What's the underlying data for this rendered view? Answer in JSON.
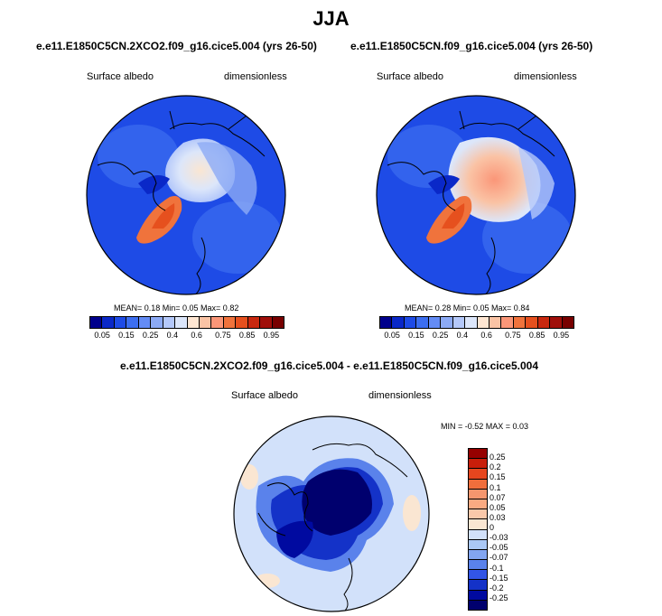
{
  "title": "JJA",
  "panels": [
    {
      "case": "e.e11.E1850C5CN.2XCO2.f09_g16.cice5.004 (yrs 26-50)",
      "variable": "Surface albedo",
      "units": "dimensionless",
      "stats": "MEAN=  0.18  Min=  0.05  Max=  0.82"
    },
    {
      "case": "e.e11.E1850C5CN.f09_g16.cice5.004 (yrs 26-50)",
      "variable": "Surface albedo",
      "units": "dimensionless",
      "stats": "MEAN=  0.28  Min=  0.05  Max=  0.84"
    }
  ],
  "diff": {
    "case": "e.e11.E1850C5CN.2XCO2.f09_g16.cice5.004 - e.e11.E1850C5CN.f09_g16.cice5.004",
    "variable": "Surface albedo",
    "units": "dimensionless",
    "stats": "MIN =  -0.52 MAX =   0.03"
  },
  "colorbar": {
    "colors": [
      "#00008c",
      "#0a28c8",
      "#1e4be6",
      "#3c6ef0",
      "#648cf5",
      "#8caaf5",
      "#b4c8fa",
      "#dce6fa",
      "#ffe6d2",
      "#fac3a5",
      "#fa9678",
      "#f0733c",
      "#e6501e",
      "#c8280f",
      "#a00f0a",
      "#780000"
    ],
    "ticks": [
      "0.05",
      "0.15",
      "0.25",
      "0.4",
      "0.6",
      "0.75",
      "0.85",
      "0.95"
    ]
  },
  "diff_colorbar": {
    "colors": [
      "#960000",
      "#c81e0a",
      "#e6461e",
      "#f06e3c",
      "#f5966e",
      "#faaa82",
      "#fac8aa",
      "#fae6d2",
      "#d2e1fa",
      "#aac8f5",
      "#82a5f0",
      "#5a82eb",
      "#3255e6",
      "#1432c8",
      "#000aa0",
      "#00006e"
    ],
    "ticks": [
      "0.25",
      "0.2",
      "0.15",
      "0.1",
      "0.07",
      "0.05",
      "0.03",
      "0",
      "-0.03",
      "-0.05",
      "-0.07",
      "-0.1",
      "-0.15",
      "-0.2",
      "-0.25"
    ]
  }
}
